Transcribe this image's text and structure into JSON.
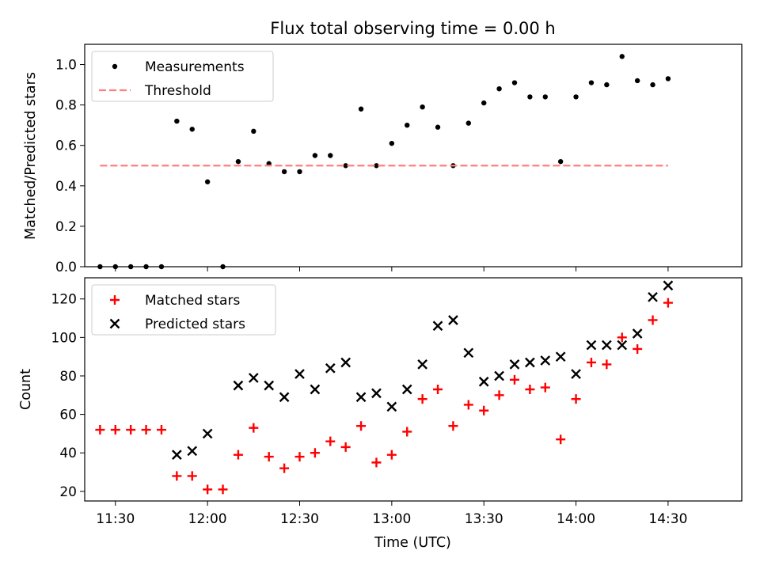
{
  "figure": {
    "title": "Flux total observing time = 0.00 h",
    "xlabel": "Time (UTC)"
  },
  "colors": {
    "measurements": "#000000",
    "threshold": "#ff7f7f",
    "matched": "#ff0000",
    "predicted": "#000000"
  },
  "chart_data": [
    {
      "type": "scatter",
      "title": "Flux total observing time = 0.00 h",
      "ylabel": "Matched/Predicted stars",
      "ylim": [
        0,
        1.1
      ],
      "yticks": [
        "0.0",
        "0.2",
        "0.4",
        "0.6",
        "0.8",
        "1.0"
      ],
      "xlim": [
        "11:20",
        "14:54"
      ],
      "xticks": [
        "11:30",
        "12:00",
        "12:30",
        "13:00",
        "13:30",
        "14:00",
        "14:30"
      ],
      "legend": "upper-left",
      "series": [
        {
          "name": "Measurements",
          "marker": "dot",
          "x": [
            "11:25",
            "11:30",
            "11:35",
            "11:40",
            "11:45",
            "11:50",
            "11:55",
            "12:00",
            "12:05",
            "12:10",
            "12:15",
            "12:20",
            "12:25",
            "12:30",
            "12:35",
            "12:40",
            "12:45",
            "12:50",
            "12:55",
            "13:00",
            "13:05",
            "13:10",
            "13:15",
            "13:20",
            "13:25",
            "13:30",
            "13:35",
            "13:40",
            "13:45",
            "13:50",
            "13:55",
            "14:00",
            "14:05",
            "14:10",
            "14:15",
            "14:20",
            "14:25",
            "14:30"
          ],
          "y": [
            0,
            0,
            0,
            0,
            0,
            0.72,
            0.68,
            0.42,
            0,
            0.52,
            0.67,
            0.51,
            0.47,
            0.47,
            0.55,
            0.55,
            0.5,
            0.78,
            0.5,
            0.61,
            0.7,
            0.79,
            0.69,
            0.5,
            0.71,
            0.81,
            0.88,
            0.91,
            0.84,
            0.84,
            0.52,
            0.84,
            0.91,
            0.9,
            1.04,
            0.92,
            0.9,
            0.93
          ]
        },
        {
          "name": "Threshold",
          "marker": "dashed-line",
          "x": [
            "11:25",
            "14:30"
          ],
          "y": [
            0.5,
            0.5
          ]
        }
      ]
    },
    {
      "type": "scatter",
      "ylabel": "Count",
      "ylim": [
        15,
        131
      ],
      "yticks": [
        "20",
        "40",
        "60",
        "80",
        "100",
        "120"
      ],
      "xlim": [
        "11:20",
        "14:54"
      ],
      "xticks": [
        "11:30",
        "12:00",
        "12:30",
        "13:00",
        "13:30",
        "14:00",
        "14:30"
      ],
      "legend": "upper-left",
      "series": [
        {
          "name": "Matched stars",
          "marker": "plus",
          "x": [
            "11:25",
            "11:30",
            "11:35",
            "11:40",
            "11:45",
            "11:50",
            "11:55",
            "12:00",
            "12:05",
            "12:10",
            "12:15",
            "12:20",
            "12:25",
            "12:30",
            "12:35",
            "12:40",
            "12:45",
            "12:50",
            "12:55",
            "13:00",
            "13:05",
            "13:10",
            "13:15",
            "13:20",
            "13:25",
            "13:30",
            "13:35",
            "13:40",
            "13:45",
            "13:50",
            "13:55",
            "14:00",
            "14:05",
            "14:10",
            "14:15",
            "14:20",
            "14:25",
            "14:30"
          ],
          "y": [
            52,
            52,
            52,
            52,
            52,
            28,
            28,
            21,
            21,
            39,
            53,
            38,
            32,
            38,
            40,
            46,
            43,
            54,
            35,
            39,
            51,
            68,
            73,
            54,
            65,
            62,
            70,
            78,
            73,
            74,
            47,
            68,
            87,
            86,
            100,
            94,
            109,
            118
          ]
        },
        {
          "name": "Predicted stars",
          "marker": "x",
          "x": [
            "11:50",
            "11:55",
            "12:00",
            "12:10",
            "12:15",
            "12:20",
            "12:25",
            "12:30",
            "12:35",
            "12:40",
            "12:45",
            "12:50",
            "12:55",
            "13:00",
            "13:05",
            "13:10",
            "13:15",
            "13:20",
            "13:25",
            "13:30",
            "13:35",
            "13:40",
            "13:45",
            "13:50",
            "13:55",
            "14:00",
            "14:05",
            "14:10",
            "14:15",
            "14:20",
            "14:25",
            "14:30"
          ],
          "y": [
            39,
            41,
            50,
            75,
            79,
            75,
            69,
            81,
            73,
            84,
            87,
            69,
            71,
            64,
            73,
            86,
            106,
            109,
            92,
            77,
            80,
            86,
            87,
            88,
            90,
            81,
            96,
            96,
            96,
            102,
            121,
            127
          ]
        }
      ]
    }
  ]
}
